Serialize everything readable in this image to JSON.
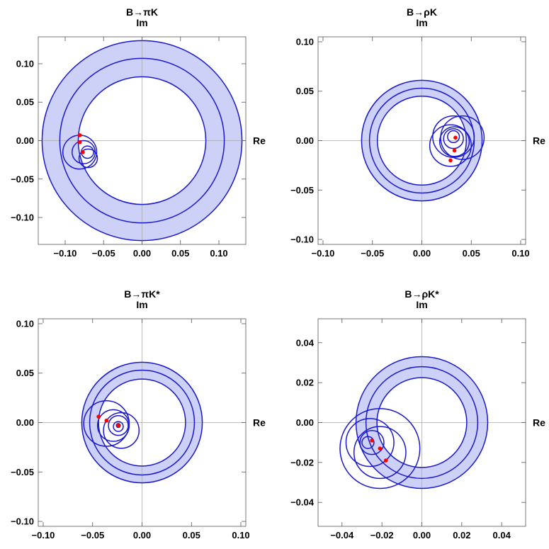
{
  "colors": {
    "band_fill": "#cdd0f7",
    "circle": "#1a1acc",
    "point": "#ff0000"
  },
  "chart_data": [
    {
      "type": "scatter",
      "title": "B→πK",
      "xlabel": "Re",
      "ylabel": "Im",
      "xlim": [
        -0.135,
        0.135
      ],
      "ylim": [
        -0.135,
        0.135
      ],
      "xticks": [
        -0.1,
        -0.05,
        0.0,
        0.05,
        0.1
      ],
      "xtick_labels": [
        "−0.10",
        "−0.05",
        "0.00",
        "0.05",
        "0.10"
      ],
      "yticks": [
        0.1,
        0.05,
        0.0,
        -0.05,
        -0.1
      ],
      "ytick_labels": [
        "0.10",
        "0.05",
        "0.00",
        "−0.05",
        "−0.10"
      ],
      "band": {
        "cx": 0,
        "cy": 0,
        "r_outer": 0.13,
        "r_inner": 0.083,
        "r_mid": 0.107
      },
      "circles": [
        {
          "cx": -0.081,
          "cy": -0.015,
          "r": 0.022
        },
        {
          "cx": -0.076,
          "cy": -0.015,
          "r": 0.015
        },
        {
          "cx": -0.071,
          "cy": -0.015,
          "r": 0.008
        },
        {
          "cx": -0.07,
          "cy": -0.023,
          "r": 0.012
        }
      ],
      "points": [
        {
          "x": -0.081,
          "y": 0.007
        },
        {
          "x": -0.081,
          "y": -0.002
        },
        {
          "x": -0.077,
          "y": -0.015
        }
      ]
    },
    {
      "type": "scatter",
      "title": "B→ρK",
      "xlabel": "Re",
      "ylabel": "Im",
      "xlim": [
        -0.105,
        0.105
      ],
      "ylim": [
        -0.105,
        0.105
      ],
      "xticks": [
        -0.1,
        -0.05,
        0.0,
        0.05,
        0.1
      ],
      "xtick_labels": [
        "−0.10",
        "−0.05",
        "0.00",
        "0.05",
        "0.10"
      ],
      "yticks": [
        0.1,
        0.05,
        0.0,
        -0.05,
        -0.1
      ],
      "ytick_labels": [
        "0.10",
        "0.05",
        "0.00",
        "−0.05",
        "−0.10"
      ],
      "band": {
        "cx": 0,
        "cy": 0,
        "r_outer": 0.061,
        "r_inner": 0.045,
        "r_mid": 0.053
      },
      "circles": [
        {
          "cx": 0.032,
          "cy": 0.004,
          "r": 0.021
        },
        {
          "cx": 0.033,
          "cy": -0.001,
          "r": 0.015
        },
        {
          "cx": 0.029,
          "cy": -0.005,
          "r": 0.021
        },
        {
          "cx": 0.032,
          "cy": 0.004,
          "r": 0.006
        },
        {
          "cx": 0.041,
          "cy": 0.003,
          "r": 0.022
        },
        {
          "cx": 0.032,
          "cy": 0.002,
          "r": 0.01
        }
      ],
      "points": [
        {
          "x": 0.034,
          "y": 0.003
        },
        {
          "x": 0.033,
          "y": -0.01
        },
        {
          "x": 0.029,
          "y": -0.02
        }
      ]
    },
    {
      "type": "scatter",
      "title": "B→πK*",
      "xlabel": "Re",
      "ylabel": "Im",
      "xlim": [
        -0.105,
        0.105
      ],
      "ylim": [
        -0.105,
        0.105
      ],
      "xticks": [
        -0.1,
        -0.05,
        0.0,
        0.05,
        0.1
      ],
      "xtick_labels": [
        "−0.10",
        "−0.05",
        "0.00",
        "0.05",
        "0.10"
      ],
      "yticks": [
        0.1,
        0.05,
        0.0,
        -0.05,
        -0.1
      ],
      "ytick_labels": [
        "0.10",
        "0.05",
        "0.00",
        "−0.05",
        "−0.10"
      ],
      "band": {
        "cx": 0,
        "cy": 0,
        "r_outer": 0.061,
        "r_inner": 0.044,
        "r_mid": 0.053
      },
      "circles": [
        {
          "cx": -0.036,
          "cy": -0.001,
          "r": 0.023
        },
        {
          "cx": -0.029,
          "cy": -0.003,
          "r": 0.016
        },
        {
          "cx": -0.024,
          "cy": -0.003,
          "r": 0.01
        },
        {
          "cx": -0.024,
          "cy": -0.004,
          "r": 0.005
        },
        {
          "cx": -0.021,
          "cy": -0.008,
          "r": 0.018
        },
        {
          "cx": -0.024,
          "cy": -0.003,
          "r": 0.002
        }
      ],
      "points": [
        {
          "x": -0.044,
          "y": 0.006
        },
        {
          "x": -0.036,
          "y": 0.002
        },
        {
          "x": -0.024,
          "y": -0.003
        }
      ]
    },
    {
      "type": "scatter",
      "title": "B→ρK*",
      "xlabel": "Re",
      "ylabel": "Im",
      "xlim": [
        -0.052,
        0.052
      ],
      "ylim": [
        -0.052,
        0.052
      ],
      "xticks": [
        -0.04,
        -0.02,
        0.0,
        0.02,
        0.04
      ],
      "xtick_labels": [
        "−0.04",
        "−0.02",
        "0.00",
        "0.02",
        "0.04"
      ],
      "yticks": [
        0.04,
        0.02,
        0.0,
        -0.02,
        -0.04
      ],
      "ytick_labels": [
        "0.04",
        "0.02",
        "0.00",
        "−0.02",
        "−0.04"
      ],
      "band": {
        "cx": 0,
        "cy": 0,
        "r_outer": 0.033,
        "r_inner": 0.0225,
        "r_mid": 0.028
      },
      "circles": [
        {
          "cx": -0.026,
          "cy": -0.01,
          "r": 0.012
        },
        {
          "cx": -0.025,
          "cy": -0.01,
          "r": 0.006
        },
        {
          "cx": -0.027,
          "cy": -0.01,
          "r": 0.003
        },
        {
          "cx": -0.021,
          "cy": -0.015,
          "r": 0.013
        },
        {
          "cx": -0.021,
          "cy": -0.013,
          "r": 0.02
        }
      ],
      "points": [
        {
          "x": -0.025,
          "y": -0.009
        },
        {
          "x": -0.021,
          "y": -0.013
        },
        {
          "x": -0.018,
          "y": -0.019
        }
      ]
    }
  ]
}
